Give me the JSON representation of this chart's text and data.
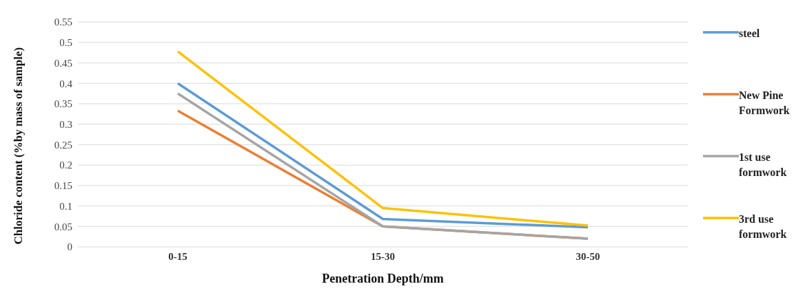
{
  "chart_data": {
    "type": "line",
    "xlabel": "Penetration Depth/mm",
    "ylabel": "Chloride  content (%by mass of sample)",
    "categories": [
      "0-15",
      "15-30",
      "30-50"
    ],
    "series": [
      {
        "name": "steel",
        "color": "#5b9bd5",
        "values": [
          0.4,
          0.068,
          0.048
        ]
      },
      {
        "name": "New Pine Formwork",
        "color": "#ed7d31",
        "values": [
          0.333,
          0.05,
          0.02
        ]
      },
      {
        "name": "1st use formwork",
        "color": "#a5a5a5",
        "values": [
          0.375,
          0.05,
          0.02
        ]
      },
      {
        "name": "3rd use formwork",
        "color": "#ffc000",
        "values": [
          0.478,
          0.095,
          0.052
        ]
      }
    ],
    "ylim": [
      0,
      0.55
    ],
    "yticks": [
      0,
      0.05,
      0.1,
      0.15,
      0.2,
      0.25,
      0.3,
      0.35,
      0.4,
      0.45,
      0.5,
      0.55
    ],
    "grid": "y",
    "legend": "right",
    "marker": "none",
    "line_style": "solid"
  }
}
